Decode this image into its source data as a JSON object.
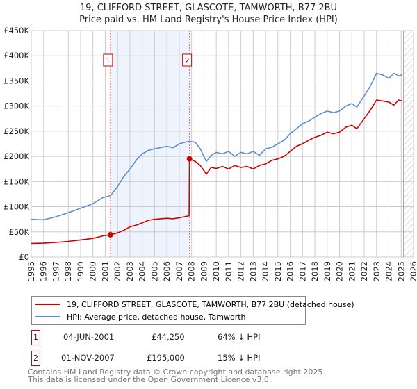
{
  "title": "19, CLIFFORD STREET, GLASCOTE, TAMWORTH, B77 2BU",
  "subtitle": "Price paid vs. HM Land Registry's House Price Index (HPI)",
  "colors": {
    "property": "#cc0000",
    "hpi": "#5b8fd0",
    "shade": "#eef3fd",
    "grid": "#cccccc"
  },
  "chart_data": {
    "type": "line",
    "xlim": [
      1995,
      2026
    ],
    "ylim": [
      0,
      450000
    ],
    "x_ticks": [
      "1995",
      "1996",
      "1997",
      "1998",
      "1999",
      "2000",
      "2001",
      "2002",
      "2003",
      "2004",
      "2005",
      "2006",
      "2007",
      "2008",
      "2009",
      "2010",
      "2011",
      "2012",
      "2013",
      "2014",
      "2015",
      "2016",
      "2017",
      "2018",
      "2019",
      "2020",
      "2021",
      "2022",
      "2023",
      "2024",
      "2025",
      "2026"
    ],
    "y_ticks": [
      {
        "v": 0,
        "label": "£0"
      },
      {
        "v": 50000,
        "label": "£50K"
      },
      {
        "v": 100000,
        "label": "£100K"
      },
      {
        "v": 150000,
        "label": "£150K"
      },
      {
        "v": 200000,
        "label": "£200K"
      },
      {
        "v": 250000,
        "label": "£250K"
      },
      {
        "v": 300000,
        "label": "£300K"
      },
      {
        "v": 350000,
        "label": "£350K"
      },
      {
        "v": 400000,
        "label": "£400K"
      },
      {
        "v": 450000,
        "label": "£450K"
      }
    ],
    "grid": true,
    "shaded_range": [
      2001.42,
      2007.83
    ],
    "hatched_from": 2025.2,
    "series": [
      {
        "name": "19, CLIFFORD STREET, GLASCOTE, TAMWORTH, B77 2BU (detached house)",
        "color": "#cc0000",
        "x": [
          1995,
          1996,
          1997,
          1998,
          1999,
          2000,
          2000.8,
          2001.42,
          2002,
          2002.5,
          2003,
          2003.6,
          2004,
          2004.5,
          2005,
          2006,
          2006.5,
          2007,
          2007.8,
          2007.83,
          2008.3,
          2008.7,
          2009.2,
          2009.6,
          2010,
          2010.5,
          2011,
          2011.5,
          2012,
          2012.5,
          2013,
          2013.5,
          2014,
          2014.5,
          2015,
          2015.5,
          2016,
          2016.5,
          2017,
          2017.5,
          2018,
          2018.5,
          2019,
          2019.5,
          2020,
          2020.5,
          2021,
          2021.4,
          2022,
          2022.5,
          2023,
          2023.5,
          2024,
          2024.4,
          2024.8,
          2025.1
        ],
        "y": [
          27000,
          27500,
          29000,
          31000,
          34000,
          37000,
          42000,
          44250,
          48000,
          53000,
          60000,
          64000,
          68000,
          73000,
          75000,
          77000,
          76000,
          78000,
          82000,
          195000,
          190000,
          182000,
          165000,
          178000,
          176000,
          180000,
          175000,
          182000,
          178000,
          180000,
          175000,
          182000,
          185000,
          192000,
          195000,
          200000,
          210000,
          220000,
          225000,
          232000,
          238000,
          242000,
          248000,
          245000,
          248000,
          258000,
          262000,
          255000,
          275000,
          292000,
          312000,
          310000,
          308000,
          302000,
          312000,
          310000
        ]
      },
      {
        "name": "HPI: Average price, detached house, Tamworth",
        "color": "#5b8fd0",
        "x": [
          1995,
          1996,
          1997,
          1998,
          1999,
          2000,
          2000.8,
          2001.42,
          2002,
          2002.5,
          2003,
          2003.6,
          2004,
          2004.5,
          2005,
          2006,
          2006.5,
          2007,
          2007.8,
          2008.3,
          2008.7,
          2009.2,
          2009.6,
          2010,
          2010.5,
          2011,
          2011.5,
          2012,
          2012.5,
          2013,
          2013.5,
          2014,
          2014.5,
          2015,
          2015.5,
          2016,
          2016.5,
          2017,
          2017.5,
          2018,
          2018.5,
          2019,
          2019.5,
          2020,
          2020.5,
          2021,
          2021.4,
          2022,
          2022.5,
          2023,
          2023.5,
          2024,
          2024.4,
          2024.8,
          2025.1
        ],
        "y": [
          75000,
          74000,
          80000,
          88000,
          97000,
          106000,
          118000,
          122000,
          140000,
          160000,
          175000,
          195000,
          205000,
          212000,
          215000,
          220000,
          217000,
          225000,
          230000,
          228000,
          215000,
          190000,
          202000,
          208000,
          205000,
          210000,
          200000,
          208000,
          205000,
          210000,
          202000,
          215000,
          218000,
          225000,
          232000,
          245000,
          255000,
          265000,
          270000,
          278000,
          285000,
          290000,
          287000,
          290000,
          300000,
          305000,
          298000,
          320000,
          340000,
          365000,
          362000,
          355000,
          365000,
          360000,
          362000
        ]
      }
    ],
    "markers": [
      {
        "label": "1",
        "x": 2001.42,
        "y": 44250
      },
      {
        "label": "2",
        "x": 2007.83,
        "y": 195000
      }
    ]
  },
  "legend": {
    "property_label": "19, CLIFFORD STREET, GLASCOTE, TAMWORTH, B77 2BU (detached house)",
    "hpi_label": "HPI: Average price, detached house, Tamworth"
  },
  "transactions": [
    {
      "num": "1",
      "date": "04-JUN-2001",
      "price": "£44,250",
      "delta": "64% ↓ HPI"
    },
    {
      "num": "2",
      "date": "01-NOV-2007",
      "price": "£195,000",
      "delta": "15% ↓ HPI"
    }
  ],
  "footer": {
    "line1": "Contains HM Land Registry data © Crown copyright and database right 2025.",
    "line2": "This data is licensed under the Open Government Licence v3.0."
  }
}
